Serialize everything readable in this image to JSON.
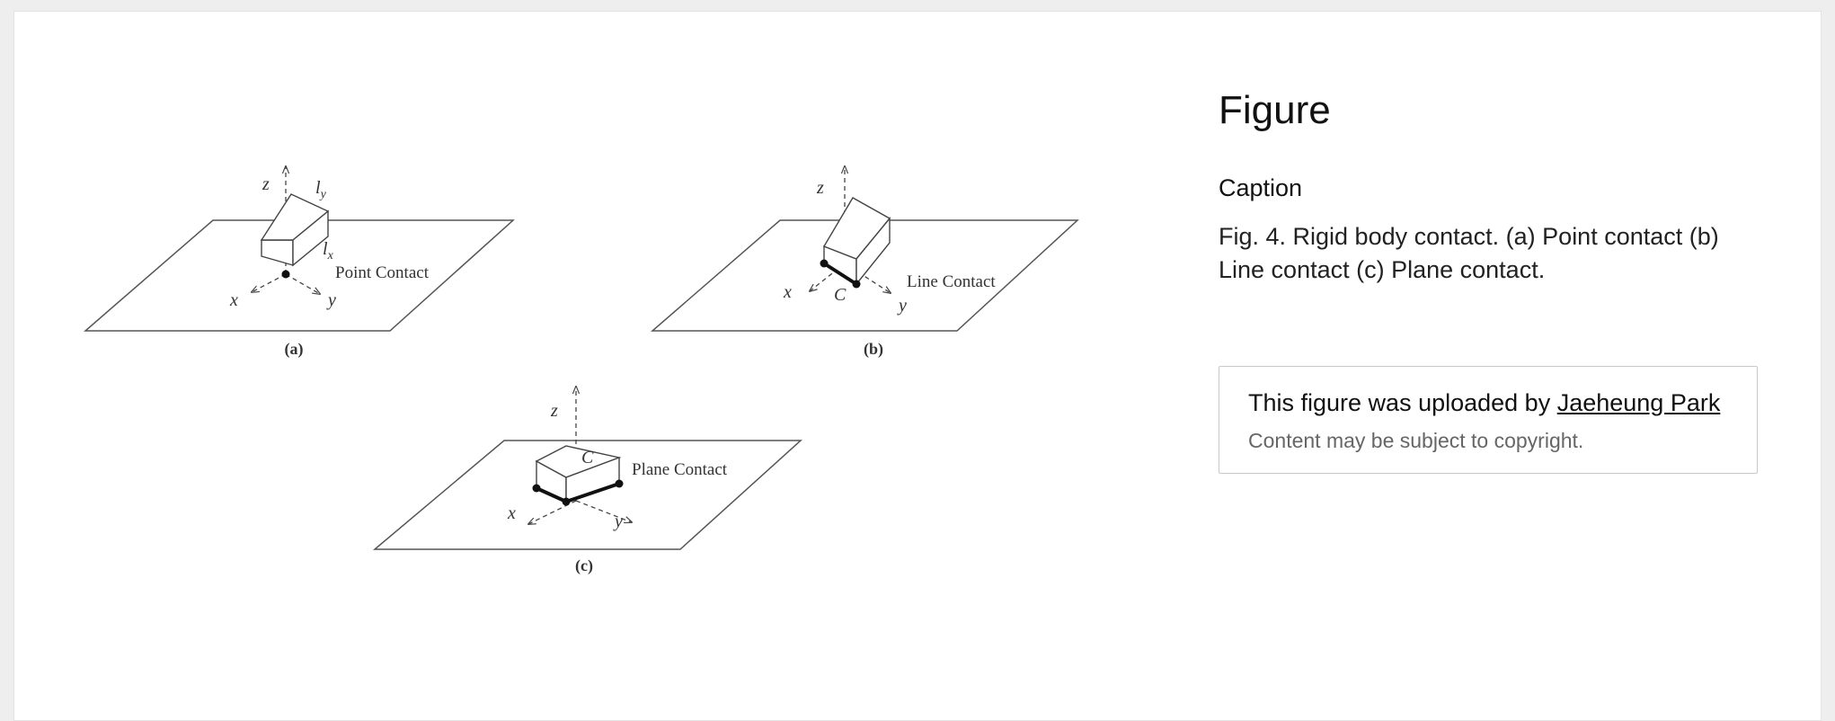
{
  "figure": {
    "panels": [
      {
        "label": "(a)",
        "contact_label": "Point Contact",
        "axes": {
          "x": "x",
          "y": "y",
          "z": "z"
        },
        "extra_labels": [
          "l_y",
          "l_x"
        ]
      },
      {
        "label": "(b)",
        "contact_label": "Line Contact",
        "axes": {
          "x": "x",
          "y": "y",
          "z": "z"
        },
        "extra_labels": [
          "C"
        ]
      },
      {
        "label": "(c)",
        "contact_label": "Plane Contact",
        "axes": {
          "x": "x",
          "y": "y",
          "z": "z"
        },
        "extra_labels": [
          "C"
        ]
      }
    ]
  },
  "sidebar": {
    "title": "Figure",
    "caption_label": "Caption",
    "caption_text": "Fig. 4. Rigid body contact. (a) Point contact (b) Line contact (c) Plane contact.",
    "uploaded_prefix": "This figure was uploaded by ",
    "uploader_name": "Jaeheung Park",
    "copyright_note": "Content may be subject to copyright."
  }
}
